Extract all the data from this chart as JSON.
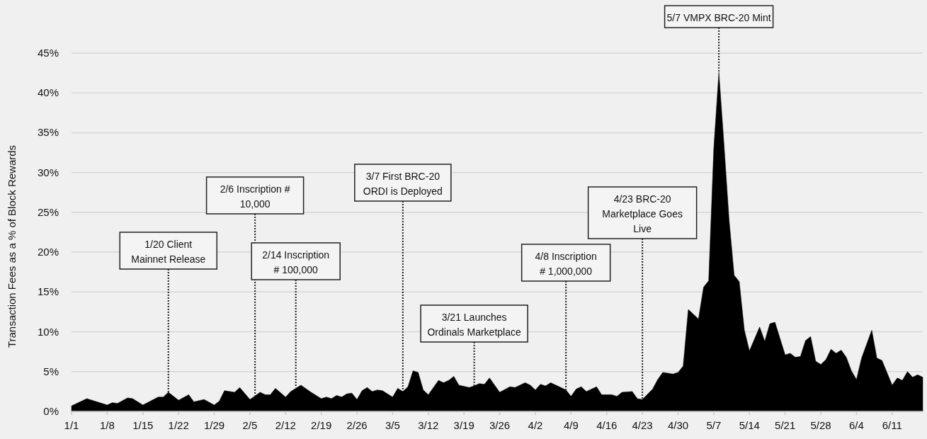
{
  "chart_data": {
    "type": "area",
    "ylabel": "Transaction Fees as a % of Block Rewards",
    "x": [
      "--01-01",
      "--01-04",
      "--01-08",
      "--01-09",
      "--01-10",
      "--01-12",
      "--01-13",
      "--01-15",
      "--01-18",
      "--01-19",
      "--01-20",
      "--01-22",
      "--01-24",
      "--01-25",
      "--01-27",
      "--01-29",
      "--01-30",
      "--01-31",
      "--02-02",
      "--02-03",
      "--02-05",
      "--02-07",
      "--02-08",
      "--02-09",
      "--02-10",
      "--02-12",
      "--02-13",
      "--02-15",
      "--02-17",
      "--02-19",
      "--02-20",
      "--02-21",
      "--02-22",
      "--02-23",
      "--02-24",
      "--02-25",
      "--02-26",
      "--02-27",
      "--02-28",
      "--03-01",
      "--03-02",
      "--03-03",
      "--03-05",
      "--03-06",
      "--03-07",
      "--03-08",
      "--03-09",
      "--03-10",
      "--03-11",
      "--03-12",
      "--03-14",
      "--03-15",
      "--03-16",
      "--03-17",
      "--03-18",
      "--03-20",
      "--03-21",
      "--03-22",
      "--03-23",
      "--03-24",
      "--03-26",
      "--03-28",
      "--03-29",
      "--03-31",
      "--04-01",
      "--04-02",
      "--04-03",
      "--04-04",
      "--04-05",
      "--04-07",
      "--04-08",
      "--04-09",
      "--04-10",
      "--04-11",
      "--04-12",
      "--04-14",
      "--04-15",
      "--04-17",
      "--04-18",
      "--04-19",
      "--04-21",
      "--04-22",
      "--04-23",
      "--04-25",
      "--04-26",
      "--04-27",
      "--04-29",
      "--04-30",
      "--05-01",
      "--05-02",
      "--05-04",
      "--05-05",
      "--05-06",
      "--05-07",
      "--05-08",
      "--05-09",
      "--05-10",
      "--05-11",
      "--05-12",
      "--05-13",
      "--05-14",
      "--05-16",
      "--05-17",
      "--05-18",
      "--05-19",
      "--05-21",
      "--05-22",
      "--05-23",
      "--05-24",
      "--05-25",
      "--05-26",
      "--05-27",
      "--05-28",
      "--05-29",
      "--05-30",
      "--05-31",
      "--06-01",
      "--06-02",
      "--06-03",
      "--06-04",
      "--06-05",
      "--06-07",
      "--06-08",
      "--06-09",
      "--06-11",
      "--06-12",
      "--06-13",
      "--06-14",
      "--06-15",
      "--06-16",
      "--06-17"
    ],
    "series": [
      {
        "color": "#000000",
        "values": [
          0.7,
          1.6,
          0.8,
          1.1,
          1.0,
          1.7,
          1.6,
          0.8,
          1.8,
          1.8,
          2.4,
          1.4,
          2.1,
          1.2,
          1.5,
          0.8,
          1.3,
          2.6,
          2.4,
          3.0,
          1.5,
          2.4,
          2.1,
          2.1,
          2.9,
          1.8,
          2.5,
          3.3,
          2.4,
          1.6,
          1.8,
          1.6,
          2.0,
          1.8,
          2.2,
          2.3,
          1.5,
          2.6,
          3.0,
          2.5,
          2.7,
          2.6,
          1.8,
          2.9,
          2.5,
          3.1,
          5.1,
          4.9,
          2.7,
          2.1,
          3.9,
          3.6,
          3.9,
          4.4,
          3.3,
          3.0,
          3.2,
          3.5,
          3.4,
          4.2,
          2.4,
          3.1,
          3.0,
          3.6,
          3.3,
          2.7,
          3.4,
          3.2,
          3.6,
          3.0,
          2.7,
          1.9,
          2.8,
          3.1,
          2.5,
          3.1,
          2.1,
          2.1,
          1.9,
          2.4,
          2.5,
          1.6,
          1.5,
          2.8,
          4.0,
          4.9,
          4.7,
          4.9,
          5.7,
          12.8,
          11.6,
          15.6,
          16.4,
          33,
          42.6,
          33.6,
          24.1,
          17.1,
          16.3,
          10.2,
          7.6,
          10.6,
          8.8,
          11.0,
          11.2,
          7.1,
          7.3,
          6.8,
          6.9,
          8.9,
          9.4,
          6.3,
          5.9,
          6.5,
          7.8,
          7.3,
          7.7,
          6.8,
          5.1,
          4.0,
          6.7,
          10.2,
          6.7,
          6.4,
          3.3,
          4.2,
          3.9,
          5.0,
          4.3,
          4.6,
          4.3
        ]
      }
    ],
    "xlim": [
      "--01-01",
      "--06-17"
    ],
    "xticks": [
      {
        "value": "--01-01",
        "label": "1/1"
      },
      {
        "value": "--01-08",
        "label": "1/8"
      },
      {
        "value": "--01-15",
        "label": "1/15"
      },
      {
        "value": "--01-22",
        "label": "1/22"
      },
      {
        "value": "--01-29",
        "label": "1/29"
      },
      {
        "value": "--02-05",
        "label": "2/5"
      },
      {
        "value": "--02-12",
        "label": "2/12"
      },
      {
        "value": "--02-19",
        "label": "2/19"
      },
      {
        "value": "--02-26",
        "label": "2/26"
      },
      {
        "value": "--03-05",
        "label": "3/5"
      },
      {
        "value": "--03-12",
        "label": "3/12"
      },
      {
        "value": "--03-19",
        "label": "3/19"
      },
      {
        "value": "--03-26",
        "label": "3/26"
      },
      {
        "value": "--04-02",
        "label": "4/2"
      },
      {
        "value": "--04-09",
        "label": "4/9"
      },
      {
        "value": "--04-16",
        "label": "4/16"
      },
      {
        "value": "--04-23",
        "label": "4/23"
      },
      {
        "value": "--04-30",
        "label": "4/30"
      },
      {
        "value": "--05-07",
        "label": "5/7"
      },
      {
        "value": "--05-14",
        "label": "5/14"
      },
      {
        "value": "--05-21",
        "label": "5/21"
      },
      {
        "value": "--05-28",
        "label": "5/28"
      },
      {
        "value": "--06-04",
        "label": "6/4"
      },
      {
        "value": "--06-11",
        "label": "6/11"
      }
    ],
    "ylim": [
      0,
      45
    ],
    "yticks": [
      {
        "value": 0,
        "label": "0%"
      },
      {
        "value": 5,
        "label": "5%"
      },
      {
        "value": 10,
        "label": "10%"
      },
      {
        "value": 15,
        "label": "15%"
      },
      {
        "value": 20,
        "label": "20%"
      },
      {
        "value": 25,
        "label": "25%"
      },
      {
        "value": 30,
        "label": "30%"
      },
      {
        "value": 35,
        "label": "35%"
      },
      {
        "value": 40,
        "label": "40%"
      },
      {
        "value": 45,
        "label": "45%"
      }
    ],
    "grid": "y",
    "annotations": [
      {
        "text": "1/20 Client Mainnet Release",
        "x": "--01-20",
        "y": 2.4
      },
      {
        "text": "2/6 Inscription # 10,000",
        "x": "--02-06",
        "y": 2.0
      },
      {
        "text": "2/14 Inscription # 100,000",
        "x": "--02-14",
        "y": 3.0
      },
      {
        "text": "3/7 First BRC-20 ORDI is Deployed",
        "x": "--03-07",
        "y": 2.5
      },
      {
        "text": "3/21 Launches Ordinals Marketplace",
        "x": "--03-21",
        "y": 3.2
      },
      {
        "text": "4/8 Inscription # 1,000,000",
        "x": "--04-08",
        "y": 2.7
      },
      {
        "text": "4/23 BRC-20 Marketplace Goes Live",
        "x": "--04-23",
        "y": 1.5
      },
      {
        "text": "5/7 VMPX BRC-20 Mint",
        "x": "--05-08",
        "y": 42.6
      }
    ]
  }
}
